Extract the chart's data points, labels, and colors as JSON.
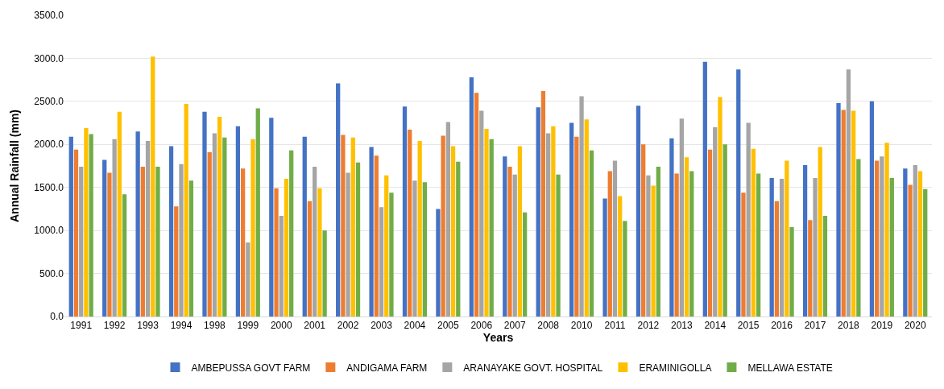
{
  "chart_data": {
    "type": "bar",
    "xlabel": "Years",
    "ylabel": "Annual Rainfall (mm)",
    "categories": [
      "1991",
      "1992",
      "1993",
      "1994",
      "1998",
      "1999",
      "2000",
      "2001",
      "2002",
      "2003",
      "2004",
      "2005",
      "2006",
      "2007",
      "2008",
      "2010",
      "2011",
      "2012",
      "2013",
      "2014",
      "2015",
      "2016",
      "2017",
      "2018",
      "2019",
      "2020"
    ],
    "series": [
      {
        "name": "AMBEPUSSA GOVT FARM",
        "color": "#4472c4",
        "values": [
          2090,
          1820,
          2150,
          1980,
          2380,
          2210,
          2310,
          2090,
          2710,
          1970,
          2440,
          1250,
          2780,
          1860,
          2430,
          2250,
          1370,
          2450,
          2070,
          2960,
          2870,
          1610,
          1760,
          2480,
          2500,
          1720
        ]
      },
      {
        "name": "ANDIGAMA FARM",
        "color": "#ed7d31",
        "values": [
          1940,
          1670,
          1740,
          1280,
          1910,
          1720,
          1490,
          1340,
          2110,
          1870,
          2170,
          2100,
          2600,
          1740,
          2620,
          2090,
          1690,
          2000,
          1660,
          1940,
          1440,
          1340,
          1120,
          2400,
          1810,
          1530
        ]
      },
      {
        "name": "ARANAYAKE GOVT. HOSPITAL",
        "color": "#a5a5a5",
        "values": [
          1740,
          2060,
          2040,
          1770,
          2130,
          860,
          1170,
          1740,
          1670,
          1270,
          1580,
          2260,
          2390,
          1650,
          2130,
          2560,
          1810,
          1640,
          2300,
          2200,
          2250,
          1600,
          1610,
          2870,
          1860,
          1760
        ]
      },
      {
        "name": "ERAMINIGOLLA",
        "color": "#ffc000",
        "values": [
          2190,
          2380,
          3020,
          2470,
          2320,
          2060,
          1600,
          1490,
          2080,
          1640,
          2040,
          1980,
          2180,
          1980,
          2210,
          2290,
          1400,
          1520,
          1850,
          2550,
          1950,
          1810,
          1970,
          2390,
          2020,
          1690
        ]
      },
      {
        "name": "MELLAWA ESTATE",
        "color": "#70ad47",
        "values": [
          2120,
          1420,
          1740,
          1580,
          2080,
          2420,
          1930,
          1000,
          1790,
          1440,
          1560,
          1800,
          2060,
          1210,
          1650,
          1930,
          1110,
          1740,
          1690,
          2000,
          1660,
          1040,
          1170,
          1830,
          1610,
          1480
        ]
      }
    ],
    "ylim": [
      0,
      3500
    ],
    "yticks": [
      {
        "value": 0,
        "label": "0.0"
      },
      {
        "value": 500,
        "label": "500.0"
      },
      {
        "value": 1000,
        "label": "1000.0"
      },
      {
        "value": 1500,
        "label": "1500.0"
      },
      {
        "value": 2000,
        "label": "2000.0"
      },
      {
        "value": 2500,
        "label": "2500.0"
      },
      {
        "value": 3000,
        "label": "3000.0"
      },
      {
        "value": 3500,
        "label": "3500.0"
      }
    ],
    "grid": "y",
    "legend": "bottom"
  }
}
